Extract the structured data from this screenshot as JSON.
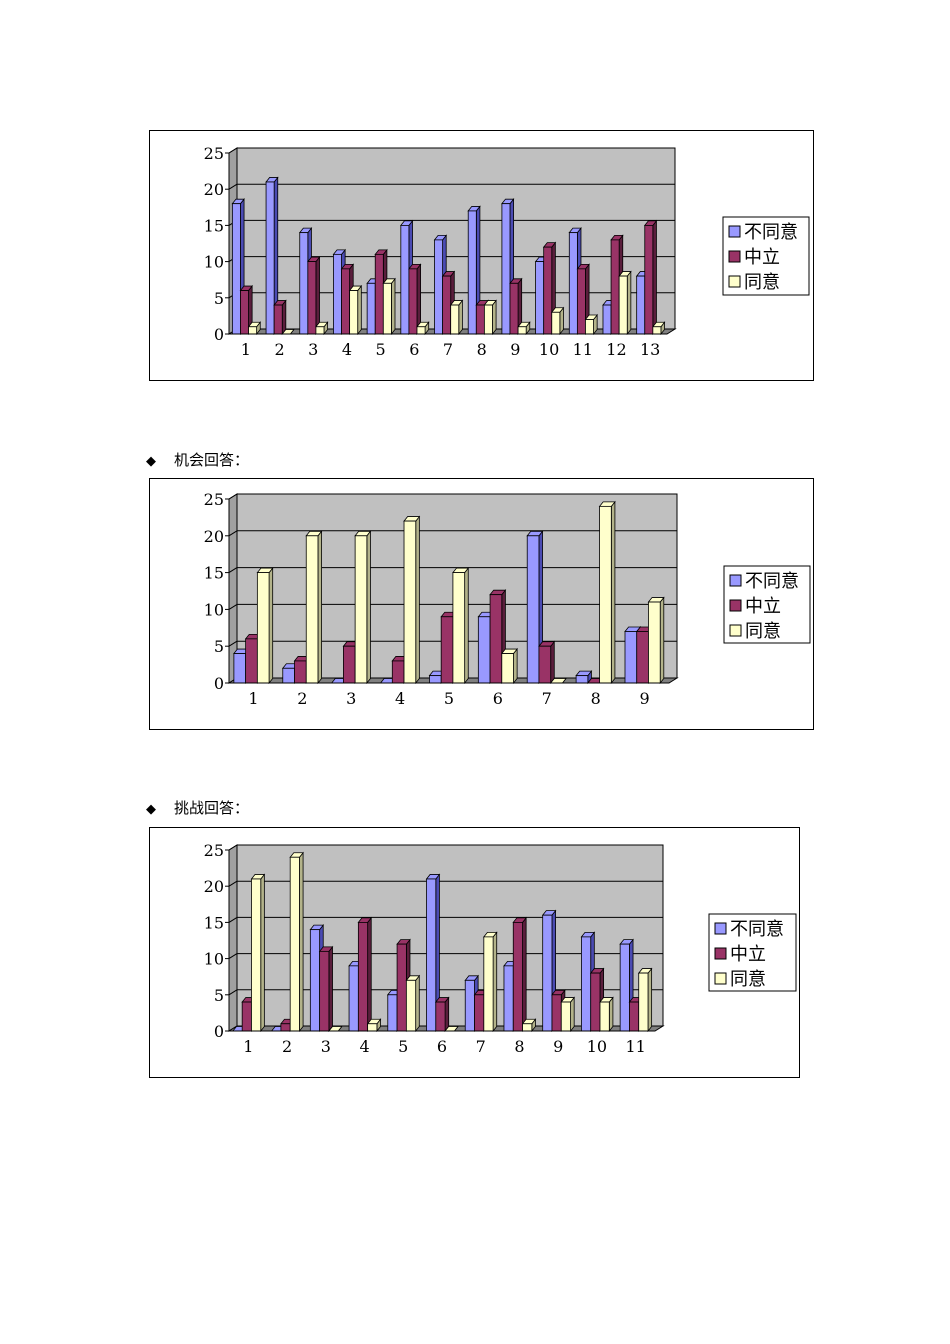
{
  "legend": [
    "不同意",
    "中立",
    "同意"
  ],
  "colors": {
    "disagree": "#9999ff",
    "disagree_dark": "#4b4bb3",
    "neutral": "#993366",
    "neutral_dark": "#5a1e3c",
    "agree": "#ffffcc",
    "agree_dark": "#b3b38a",
    "plot_bg": "#c0c0c0",
    "floor": "#808080",
    "grid": "#000000"
  },
  "sections": [
    {
      "label": ""
    },
    {
      "bullet": "◆",
      "label": "机会回答："
    },
    {
      "bullet": "◆",
      "label": "挑战回答："
    }
  ],
  "chart_data": [
    {
      "type": "bar",
      "categories": [
        "1",
        "2",
        "3",
        "4",
        "5",
        "6",
        "7",
        "8",
        "9",
        "10",
        "11",
        "12",
        "13"
      ],
      "series": [
        {
          "name": "不同意",
          "values": [
            18,
            21,
            14,
            11,
            7,
            15,
            13,
            17,
            18,
            10,
            14,
            4,
            8
          ]
        },
        {
          "name": "中立",
          "values": [
            6,
            4,
            10,
            9,
            11,
            9,
            8,
            4,
            7,
            12,
            9,
            13,
            15
          ]
        },
        {
          "name": "同意",
          "values": [
            1,
            0,
            1,
            6,
            7,
            1,
            4,
            4,
            1,
            3,
            2,
            8,
            1
          ]
        }
      ],
      "yticks": [
        "0",
        "5",
        "10",
        "15",
        "20",
        "25"
      ],
      "ylim": [
        0,
        25
      ],
      "grid": true,
      "legend_position": "right"
    },
    {
      "type": "bar",
      "categories": [
        "1",
        "2",
        "3",
        "4",
        "5",
        "6",
        "7",
        "8",
        "9"
      ],
      "series": [
        {
          "name": "不同意",
          "values": [
            4,
            2,
            0,
            0,
            1,
            9,
            20,
            1,
            7
          ]
        },
        {
          "name": "中立",
          "values": [
            6,
            3,
            5,
            3,
            9,
            12,
            5,
            0,
            7
          ]
        },
        {
          "name": "同意",
          "values": [
            15,
            20,
            20,
            22,
            15,
            4,
            0,
            24,
            11
          ]
        }
      ],
      "yticks": [
        "0",
        "5",
        "10",
        "15",
        "20",
        "25"
      ],
      "ylim": [
        0,
        25
      ],
      "grid": true,
      "legend_position": "right"
    },
    {
      "type": "bar",
      "categories": [
        "1",
        "2",
        "3",
        "4",
        "5",
        "6",
        "7",
        "8",
        "9",
        "10",
        "11"
      ],
      "series": [
        {
          "name": "不同意",
          "values": [
            0,
            0,
            14,
            9,
            5,
            21,
            7,
            9,
            16,
            13,
            12
          ]
        },
        {
          "name": "中立",
          "values": [
            4,
            1,
            11,
            15,
            12,
            4,
            5,
            15,
            5,
            8,
            4
          ]
        },
        {
          "name": "同意",
          "values": [
            21,
            24,
            0,
            1,
            7,
            0,
            13,
            1,
            4,
            4,
            8
          ]
        }
      ],
      "yticks": [
        "0",
        "5",
        "10",
        "15",
        "20",
        "25"
      ],
      "ylim": [
        0,
        25
      ],
      "grid": true,
      "legend_position": "right"
    }
  ]
}
